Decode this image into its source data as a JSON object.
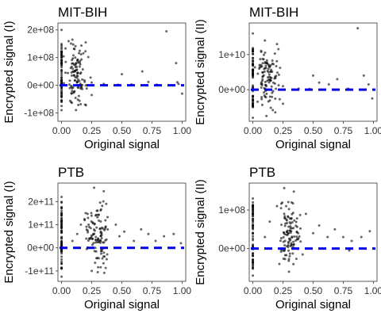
{
  "chart_data": [
    {
      "type": "scatter",
      "title": "MIT-BIH",
      "xlabel": "Original signal",
      "ylabel": "Encrypted signal (I)",
      "xlim": [
        -0.03,
        1.03
      ],
      "ylim": [
        -130000000,
        225000000
      ],
      "xticks": [
        0,
        0.25,
        0.5,
        0.75,
        1
      ],
      "xtick_labels": [
        "0.00",
        "0.25",
        "0.50",
        "0.75",
        "1.00"
      ],
      "yticks": [
        -100000000,
        0,
        100000000,
        200000000
      ],
      "ytick_labels": [
        "-1e+08",
        "0e+00",
        "1e+08",
        "2e+08"
      ],
      "cluster_x": 0.12,
      "reference_line": {
        "y": 0,
        "style": "dashed",
        "color": "#0000ee"
      },
      "points": [
        [
          0,
          200000000.0
        ],
        [
          0,
          -90000000.0
        ],
        [
          0,
          120000000.0
        ],
        [
          0,
          -60000000.0
        ],
        [
          0,
          80000000.0
        ],
        [
          0,
          90000000.0
        ],
        [
          0,
          100000000.0
        ],
        [
          0,
          50000000.0
        ],
        [
          0.87,
          195000000.0
        ],
        [
          0.5,
          40000000.0
        ],
        [
          0.2,
          155000000.0
        ],
        [
          0.09,
          165000000.0
        ],
        [
          0.16,
          -12000000.0
        ],
        [
          0.25,
          10000000.0
        ],
        [
          0.35,
          5000000.0
        ],
        [
          0.47,
          2000000.0
        ],
        [
          0.58,
          3000000.0
        ],
        [
          0.67,
          50000000.0
        ],
        [
          0.72,
          12000000.0
        ],
        [
          0.79,
          2000000.0
        ],
        [
          0.95,
          80000000.0
        ],
        [
          0.97,
          5000000.0
        ],
        [
          1.0,
          -30000000.0
        ],
        [
          0.96,
          11000000.0
        ],
        [
          0.25,
          -35000000.0
        ]
      ],
      "cluster_extent": {
        "y_min": -80000000.0,
        "y_max": 150000000.0
      }
    },
    {
      "type": "scatter",
      "title": "MIT-BIH",
      "xlabel": "Original signal",
      "ylabel": "Encrypted signal (II)",
      "xlim": [
        -0.03,
        1.03
      ],
      "ylim": [
        -9000000000,
        19000000000
      ],
      "xticks": [
        0,
        0.25,
        0.5,
        0.75,
        1
      ],
      "xtick_labels": [
        "0.00",
        "0.25",
        "0.50",
        "0.75",
        "1.00"
      ],
      "yticks": [
        0,
        10000000000
      ],
      "ytick_labels": [
        "0e+00",
        "1e+10"
      ],
      "cluster_x": 0.12,
      "reference_line": {
        "y": 0,
        "style": "dashed",
        "color": "#0000ee"
      },
      "points": [
        [
          0,
          16000000000.0
        ],
        [
          0,
          -8000000000.0
        ],
        [
          0,
          11500000000.0
        ],
        [
          0,
          -5000000000.0
        ],
        [
          0,
          9000000000.0
        ],
        [
          0,
          7000000000.0
        ],
        [
          0.87,
          17500000000.0
        ],
        [
          0.5,
          4000000000.0
        ],
        [
          0.2,
          13000000000.0
        ],
        [
          0.1,
          14000000000.0
        ],
        [
          0.16,
          -900000000.0
        ],
        [
          0.25,
          1000000000.0
        ],
        [
          0.38,
          300000000.0
        ],
        [
          0.47,
          200000000.0
        ],
        [
          0.55,
          2000000000.0
        ],
        [
          0.63,
          1500000000.0
        ],
        [
          0.7,
          3000000000.0
        ],
        [
          0.79,
          300000000.0
        ],
        [
          0.92,
          4000000000.0
        ],
        [
          0.96,
          1500000000.0
        ],
        [
          0.99,
          -2500000000.0
        ],
        [
          0.25,
          -4000000000.0
        ]
      ],
      "cluster_extent": {
        "y_min": -5000000000.0,
        "y_max": 13000000000.0
      }
    },
    {
      "type": "scatter",
      "title": "PTB",
      "xlabel": "Original signal",
      "ylabel": "Encrypted signal (I)",
      "xlim": [
        -0.03,
        1.03
      ],
      "ylim": [
        -145000000000,
        280000000000
      ],
      "xticks": [
        0,
        0.25,
        0.5,
        0.75,
        1
      ],
      "xtick_labels": [
        "0.00",
        "0.25",
        "0.50",
        "0.75",
        "1.00"
      ],
      "yticks": [
        -100000000000,
        0,
        100000000000,
        200000000000
      ],
      "ytick_labels": [
        "-1e+11",
        "0e+00",
        "1e+11",
        "2e+11"
      ],
      "cluster_x": 0.3,
      "reference_line": {
        "y": 0,
        "style": "dashed",
        "color": "#0000ee"
      },
      "points": [
        [
          0,
          220000000000.0
        ],
        [
          0,
          -125000000000.0
        ],
        [
          0,
          150000000000.0
        ],
        [
          0,
          -90000000000.0
        ],
        [
          0,
          120000000000.0
        ],
        [
          0,
          -60000000000.0
        ],
        [
          0.27,
          260000000000.0
        ],
        [
          0.35,
          245000000000.0
        ],
        [
          0.2,
          150000000000.0
        ],
        [
          0.16,
          100000000000.0
        ],
        [
          0.13,
          60000000000.0
        ],
        [
          0.09,
          30000000000.0
        ],
        [
          0.45,
          100000000000.0
        ],
        [
          0.48,
          50000000000.0
        ],
        [
          0.52,
          70000000000.0
        ],
        [
          0.6,
          30000000000.0
        ],
        [
          0.66,
          80000000000.0
        ],
        [
          0.72,
          60000000000.0
        ],
        [
          0.78,
          30000000000.0
        ],
        [
          0.85,
          50000000000.0
        ],
        [
          0.93,
          60000000000.0
        ],
        [
          0.99,
          20000000000.0
        ],
        [
          0.3,
          -105000000000.0
        ],
        [
          0.25,
          -100000000000.0
        ]
      ],
      "cluster_extent": {
        "y_min": -90000000000.0,
        "y_max": 200000000000.0
      }
    },
    {
      "type": "scatter",
      "title": "PTB",
      "xlabel": "Original signal",
      "ylabel": "Encrypted signal (II)",
      "xlim": [
        -0.03,
        1.03
      ],
      "ylim": [
        -85000000,
        170000000
      ],
      "xticks": [
        0,
        0.25,
        0.5,
        0.75,
        1
      ],
      "xtick_labels": [
        "0.00",
        "0.25",
        "0.50",
        "0.75",
        "1.00"
      ],
      "yticks": [
        0,
        100000000
      ],
      "ytick_labels": [
        "0e+00",
        "1e+08"
      ],
      "cluster_x": 0.3,
      "reference_line": {
        "y": 0,
        "style": "dashed",
        "color": "#0000ee"
      },
      "points": [
        [
          0,
          130000000.0
        ],
        [
          0,
          -70000000.0
        ],
        [
          0,
          110000000.0
        ],
        [
          0,
          -50000000.0
        ],
        [
          0,
          90000000.0
        ],
        [
          0,
          60000000.0
        ],
        [
          0.26,
          157000000.0
        ],
        [
          0.34,
          148000000.0
        ],
        [
          0.2,
          110000000.0
        ],
        [
          0.14,
          70000000.0
        ],
        [
          0.1,
          30000000.0
        ],
        [
          0.44,
          90000000.0
        ],
        [
          0.5,
          40000000.0
        ],
        [
          0.55,
          60000000.0
        ],
        [
          0.62,
          30000000.0
        ],
        [
          0.68,
          50000000.0
        ],
        [
          0.75,
          30000000.0
        ],
        [
          0.82,
          20000000.0
        ],
        [
          0.9,
          30000000.0
        ],
        [
          0.97,
          45000000.0
        ],
        [
          0.8,
          -5000000.0
        ],
        [
          0.3,
          -60000000.0
        ],
        [
          0.22,
          -40000000.0
        ]
      ],
      "cluster_extent": {
        "y_min": -55000000.0,
        "y_max": 120000000.0
      }
    }
  ]
}
